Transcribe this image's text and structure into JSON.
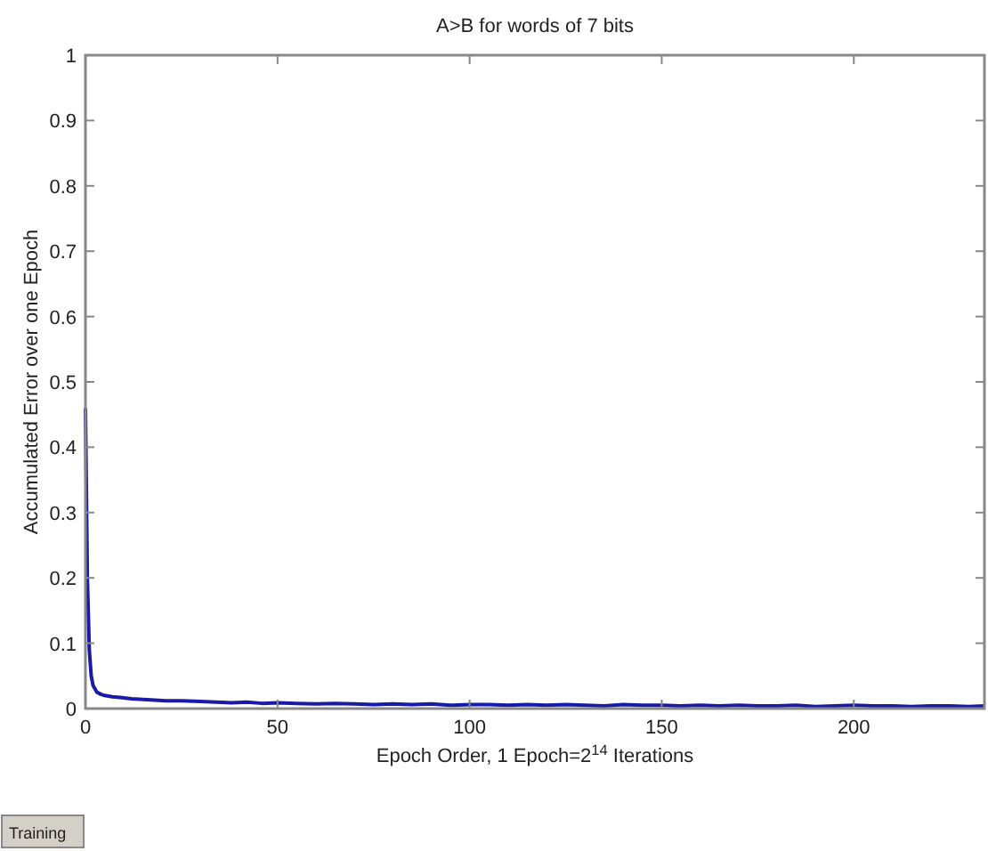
{
  "chart_data": {
    "type": "line",
    "title": "A>B for words of 7 bits",
    "xlabel": "Epoch Order, 1 Epoch=2$^{14}$ Iterations",
    "ylabel": "Accumulated Error over one Epoch",
    "x": [
      0,
      0.5,
      1,
      1.5,
      2,
      3,
      4,
      5,
      7,
      9,
      12,
      15,
      18,
      21,
      25,
      30,
      34,
      38,
      42,
      46,
      50,
      55,
      60,
      65,
      70,
      75,
      80,
      85,
      90,
      95,
      100,
      105,
      110,
      115,
      120,
      125,
      130,
      135,
      140,
      145,
      150,
      155,
      160,
      165,
      170,
      175,
      180,
      185,
      190,
      195,
      200,
      205,
      210,
      215,
      220,
      225,
      230,
      234
    ],
    "series": [
      {
        "color": "#1a1aa8",
        "values": [
          0.46,
          0.2,
          0.09,
          0.05,
          0.035,
          0.025,
          0.022,
          0.02,
          0.018,
          0.017,
          0.015,
          0.014,
          0.013,
          0.012,
          0.012,
          0.011,
          0.01,
          0.009,
          0.01,
          0.008,
          0.009,
          0.008,
          0.007,
          0.008,
          0.007,
          0.006,
          0.007,
          0.006,
          0.007,
          0.005,
          0.006,
          0.006,
          0.005,
          0.006,
          0.005,
          0.006,
          0.005,
          0.004,
          0.006,
          0.005,
          0.005,
          0.004,
          0.005,
          0.004,
          0.005,
          0.004,
          0.004,
          0.005,
          0.003,
          0.004,
          0.005,
          0.004,
          0.004,
          0.003,
          0.004,
          0.004,
          0.003,
          0.004
        ]
      }
    ],
    "xlim": [
      0,
      234
    ],
    "xticks": [
      0,
      50,
      100,
      150,
      200
    ],
    "ylim": [
      0,
      1
    ],
    "yticks": [
      0,
      0.1,
      0.2,
      0.3,
      0.4,
      0.5,
      0.6,
      0.7,
      0.8,
      0.9,
      1
    ],
    "grid": false,
    "marker": "none",
    "line_style": "solid",
    "annotations": [
      "Training"
    ]
  }
}
